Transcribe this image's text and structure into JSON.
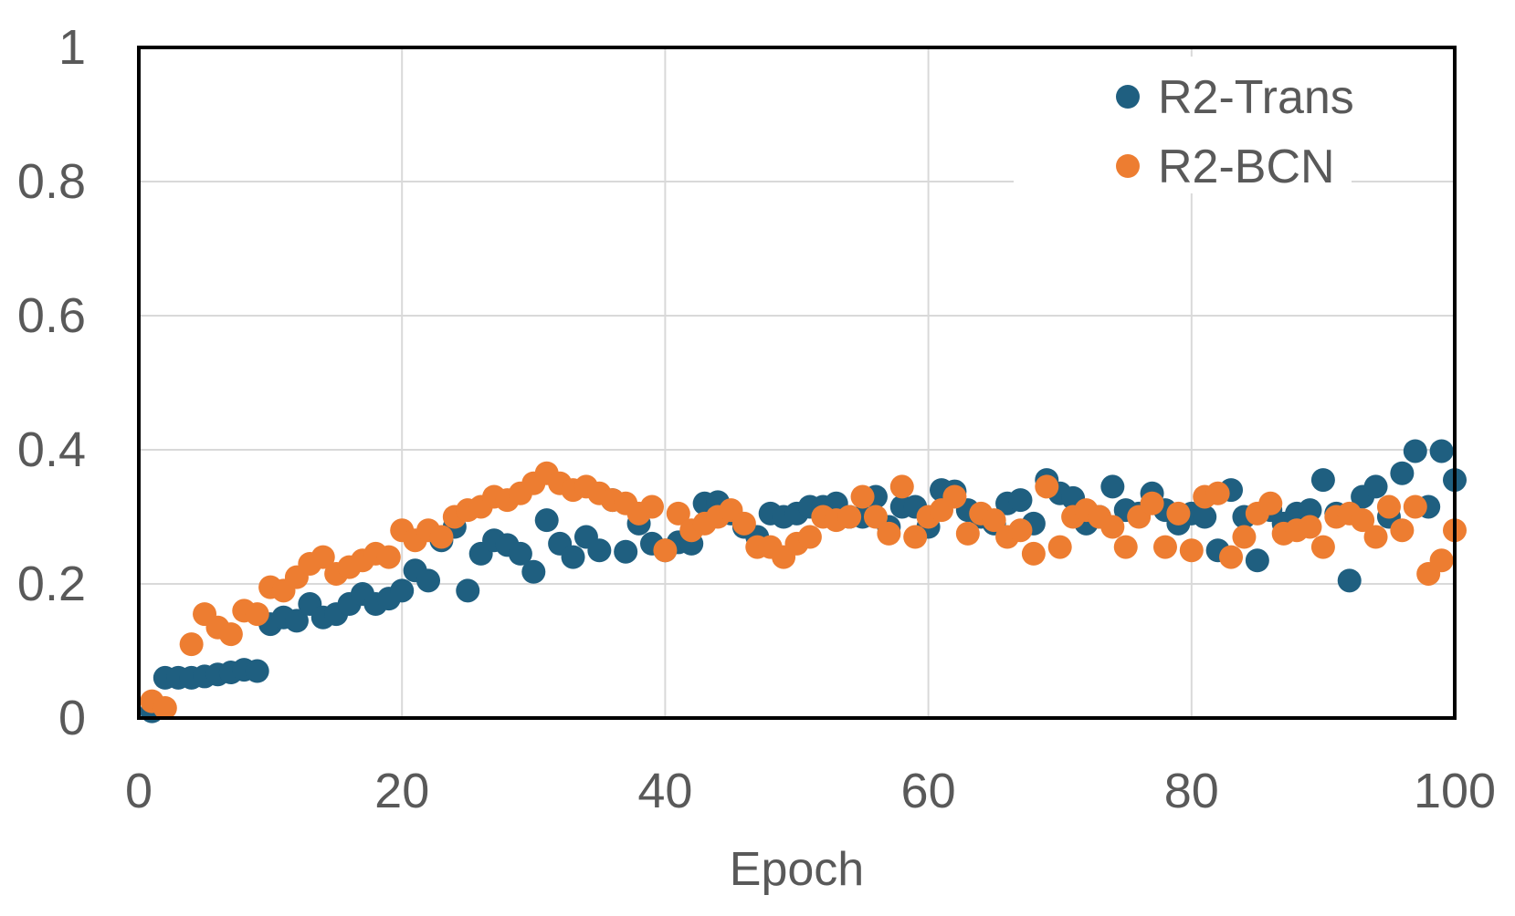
{
  "chart_data": {
    "type": "scatter",
    "title": "",
    "xlabel": "Epoch",
    "ylabel": "",
    "xlim": [
      0,
      100
    ],
    "ylim": [
      0,
      1
    ],
    "x_ticks": [
      "0",
      "20",
      "40",
      "60",
      "80",
      "100"
    ],
    "y_ticks": [
      "0",
      "0.2",
      "0.4",
      "0.6",
      "0.8",
      "1"
    ],
    "grid": true,
    "legend_position": "top-right",
    "series": [
      {
        "name": "R2-Trans",
        "color": "#1f5f80",
        "points": [
          [
            1,
            0.01
          ],
          [
            2,
            0.06
          ],
          [
            3,
            0.06
          ],
          [
            4,
            0.06
          ],
          [
            5,
            0.062
          ],
          [
            6,
            0.065
          ],
          [
            7,
            0.068
          ],
          [
            8,
            0.072
          ],
          [
            9,
            0.07
          ],
          [
            10,
            0.14
          ],
          [
            11,
            0.15
          ],
          [
            12,
            0.145
          ],
          [
            13,
            0.17
          ],
          [
            14,
            0.15
          ],
          [
            15,
            0.155
          ],
          [
            16,
            0.17
          ],
          [
            17,
            0.185
          ],
          [
            18,
            0.17
          ],
          [
            19,
            0.178
          ],
          [
            20,
            0.19
          ],
          [
            21,
            0.22
          ],
          [
            22,
            0.205
          ],
          [
            23,
            0.265
          ],
          [
            24,
            0.285
          ],
          [
            25,
            0.19
          ],
          [
            26,
            0.245
          ],
          [
            27,
            0.265
          ],
          [
            28,
            0.258
          ],
          [
            29,
            0.245
          ],
          [
            30,
            0.218
          ],
          [
            31,
            0.295
          ],
          [
            32,
            0.26
          ],
          [
            33,
            0.24
          ],
          [
            34,
            0.27
          ],
          [
            35,
            0.25
          ],
          [
            36,
            0.325
          ],
          [
            37,
            0.248
          ],
          [
            38,
            0.29
          ],
          [
            39,
            0.26
          ],
          [
            40,
            0.25
          ],
          [
            41,
            0.262
          ],
          [
            42,
            0.26
          ],
          [
            43,
            0.32
          ],
          [
            44,
            0.322
          ],
          [
            45,
            0.305
          ],
          [
            46,
            0.285
          ],
          [
            47,
            0.27
          ],
          [
            48,
            0.305
          ],
          [
            49,
            0.3
          ],
          [
            50,
            0.305
          ],
          [
            51,
            0.315
          ],
          [
            52,
            0.315
          ],
          [
            53,
            0.32
          ],
          [
            54,
            0.3
          ],
          [
            55,
            0.3
          ],
          [
            56,
            0.33
          ],
          [
            57,
            0.285
          ],
          [
            58,
            0.315
          ],
          [
            59,
            0.315
          ],
          [
            60,
            0.285
          ],
          [
            61,
            0.34
          ],
          [
            62,
            0.338
          ],
          [
            63,
            0.31
          ],
          [
            64,
            0.3
          ],
          [
            65,
            0.29
          ],
          [
            66,
            0.32
          ],
          [
            67,
            0.325
          ],
          [
            68,
            0.29
          ],
          [
            69,
            0.355
          ],
          [
            70,
            0.335
          ],
          [
            71,
            0.328
          ],
          [
            72,
            0.29
          ],
          [
            73,
            0.3
          ],
          [
            74,
            0.345
          ],
          [
            75,
            0.31
          ],
          [
            76,
            0.305
          ],
          [
            77,
            0.335
          ],
          [
            78,
            0.31
          ],
          [
            79,
            0.29
          ],
          [
            80,
            0.305
          ],
          [
            81,
            0.3
          ],
          [
            82,
            0.25
          ],
          [
            83,
            0.34
          ],
          [
            84,
            0.3
          ],
          [
            85,
            0.235
          ],
          [
            86,
            0.31
          ],
          [
            87,
            0.29
          ],
          [
            88,
            0.305
          ],
          [
            89,
            0.31
          ],
          [
            90,
            0.355
          ],
          [
            91,
            0.305
          ],
          [
            92,
            0.205
          ],
          [
            93,
            0.33
          ],
          [
            94,
            0.345
          ],
          [
            95,
            0.3
          ],
          [
            96,
            0.365
          ],
          [
            97,
            0.398
          ],
          [
            98,
            0.315
          ],
          [
            99,
            0.398
          ],
          [
            100,
            0.355
          ]
        ]
      },
      {
        "name": "R2-BCN",
        "color": "#ed7d31",
        "points": [
          [
            1,
            0.025
          ],
          [
            2,
            0.015
          ],
          [
            4,
            0.11
          ],
          [
            5,
            0.155
          ],
          [
            6,
            0.135
          ],
          [
            7,
            0.125
          ],
          [
            8,
            0.16
          ],
          [
            9,
            0.155
          ],
          [
            10,
            0.195
          ],
          [
            11,
            0.19
          ],
          [
            12,
            0.21
          ],
          [
            13,
            0.23
          ],
          [
            14,
            0.24
          ],
          [
            15,
            0.215
          ],
          [
            16,
            0.225
          ],
          [
            17,
            0.235
          ],
          [
            18,
            0.245
          ],
          [
            19,
            0.24
          ],
          [
            20,
            0.28
          ],
          [
            21,
            0.265
          ],
          [
            22,
            0.28
          ],
          [
            23,
            0.27
          ],
          [
            24,
            0.3
          ],
          [
            25,
            0.31
          ],
          [
            26,
            0.315
          ],
          [
            27,
            0.33
          ],
          [
            28,
            0.325
          ],
          [
            29,
            0.335
          ],
          [
            30,
            0.35
          ],
          [
            31,
            0.365
          ],
          [
            32,
            0.35
          ],
          [
            33,
            0.34
          ],
          [
            34,
            0.345
          ],
          [
            35,
            0.335
          ],
          [
            36,
            0.325
          ],
          [
            37,
            0.32
          ],
          [
            38,
            0.305
          ],
          [
            39,
            0.315
          ],
          [
            40,
            0.25
          ],
          [
            41,
            0.305
          ],
          [
            42,
            0.28
          ],
          [
            43,
            0.29
          ],
          [
            44,
            0.3
          ],
          [
            45,
            0.31
          ],
          [
            46,
            0.29
          ],
          [
            47,
            0.255
          ],
          [
            48,
            0.255
          ],
          [
            49,
            0.24
          ],
          [
            50,
            0.26
          ],
          [
            51,
            0.27
          ],
          [
            52,
            0.3
          ],
          [
            53,
            0.295
          ],
          [
            54,
            0.3
          ],
          [
            55,
            0.33
          ],
          [
            56,
            0.3
          ],
          [
            57,
            0.275
          ],
          [
            58,
            0.345
          ],
          [
            59,
            0.27
          ],
          [
            60,
            0.3
          ],
          [
            61,
            0.31
          ],
          [
            62,
            0.33
          ],
          [
            63,
            0.275
          ],
          [
            64,
            0.305
          ],
          [
            65,
            0.295
          ],
          [
            66,
            0.27
          ],
          [
            67,
            0.28
          ],
          [
            68,
            0.245
          ],
          [
            69,
            0.345
          ],
          [
            70,
            0.255
          ],
          [
            71,
            0.3
          ],
          [
            72,
            0.31
          ],
          [
            73,
            0.3
          ],
          [
            74,
            0.285
          ],
          [
            75,
            0.255
          ],
          [
            76,
            0.3
          ],
          [
            77,
            0.32
          ],
          [
            78,
            0.255
          ],
          [
            79,
            0.305
          ],
          [
            80,
            0.25
          ],
          [
            81,
            0.33
          ],
          [
            82,
            0.335
          ],
          [
            83,
            0.24
          ],
          [
            84,
            0.27
          ],
          [
            85,
            0.305
          ],
          [
            86,
            0.32
          ],
          [
            87,
            0.275
          ],
          [
            88,
            0.28
          ],
          [
            89,
            0.285
          ],
          [
            90,
            0.255
          ],
          [
            91,
            0.3
          ],
          [
            92,
            0.305
          ],
          [
            93,
            0.295
          ],
          [
            94,
            0.27
          ],
          [
            95,
            0.315
          ],
          [
            96,
            0.28
          ],
          [
            97,
            0.315
          ],
          [
            98,
            0.215
          ],
          [
            99,
            0.235
          ],
          [
            100,
            0.28
          ]
        ]
      }
    ]
  }
}
